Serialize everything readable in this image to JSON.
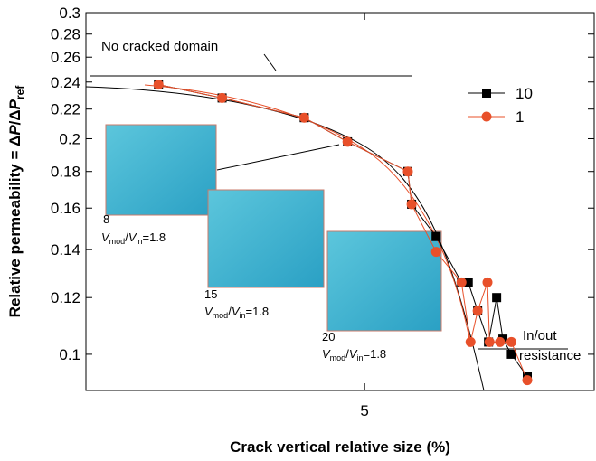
{
  "chart_data": {
    "type": "line",
    "x_label": "Crack vertical relative size (%)",
    "y_label": [
      "Relative permeability = Δ",
      "P",
      "/Δ",
      "P",
      "ref"
    ],
    "xlog": true,
    "ylog": true,
    "xlim": [
      1.2,
      16.2
    ],
    "xticks": [
      5
    ],
    "ylim": [
      0.089,
      0.3
    ],
    "yticks": [
      0.1,
      0.12,
      0.14,
      0.16,
      0.18,
      0.2,
      0.22,
      0.24,
      0.26,
      0.28,
      0.3
    ],
    "legend": "top-right",
    "series": [
      {
        "name": "10",
        "color": "#000000",
        "marker": "square",
        "x": [
          1.74,
          2.41,
          3.67,
          4.58,
          6.24,
          6.36,
          7.21,
          8.21,
          8.5,
          8.92,
          9.43,
          9.83,
          10.15,
          10.6,
          11.5
        ],
        "values": [
          0.238,
          0.228,
          0.214,
          0.198,
          0.18,
          0.162,
          0.146,
          0.126,
          0.126,
          0.115,
          0.104,
          0.12,
          0.105,
          0.1,
          0.093
        ]
      },
      {
        "name": "1",
        "color": "#e8502a",
        "marker": "circle",
        "x": [
          1.74,
          2.41,
          3.67,
          4.58,
          6.24,
          6.36,
          7.21,
          8.21,
          8.6,
          8.92,
          9.38,
          9.48,
          10.0,
          10.6,
          11.5
        ],
        "values": [
          0.238,
          0.228,
          0.214,
          0.198,
          0.18,
          0.162,
          0.139,
          0.126,
          0.104,
          0.115,
          0.126,
          0.104,
          0.104,
          0.104,
          0.092
        ]
      }
    ],
    "annotations": {
      "no_crack": "No cracked domain",
      "in_out": [
        "In/out",
        "resistance"
      ],
      "snapshots": [
        {
          "size": "8",
          "ratio": [
            "V",
            "mod",
            "/",
            "V",
            "in",
            "=1.8"
          ]
        },
        {
          "size": "15",
          "ratio": [
            "V",
            "mod",
            "/",
            "V",
            "in",
            "=1.8"
          ]
        },
        {
          "size": "20",
          "ratio": [
            "V",
            "mod",
            "/",
            "V",
            "in",
            "=1.8"
          ]
        }
      ]
    }
  }
}
